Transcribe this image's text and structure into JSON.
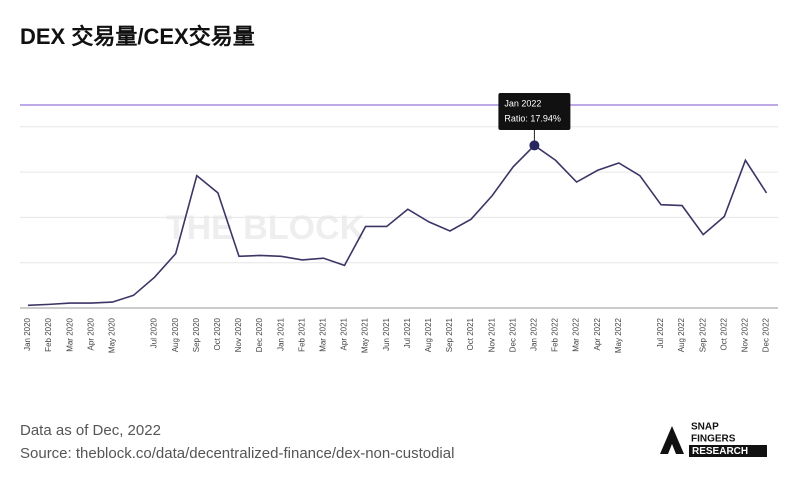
{
  "chart_data": {
    "type": "line",
    "title": "DEX 交易量/CEX交易量",
    "categories": [
      "Jan 2020",
      "Feb 2020",
      "Mar 2020",
      "Apr 2020",
      "May 2020",
      null,
      "Jul 2020",
      "Aug 2020",
      "Sep 2020",
      "Oct 2020",
      "Nov 2020",
      "Dec 2020",
      "Jan 2021",
      "Feb 2021",
      "Mar 2021",
      "Apr 2021",
      "May 2021",
      "Jun 2021",
      "Jul 2021",
      "Aug 2021",
      "Sep 2021",
      "Oct 2021",
      "Nov 2021",
      "Dec 2021",
      "Jan 2022",
      "Feb 2022",
      "Mar 2022",
      "Apr 2022",
      "May 2022",
      null,
      "Jul 2022",
      "Aug 2022",
      "Sep 2022",
      "Oct 2022",
      "Nov 2022",
      "Dec 2022"
    ],
    "series": [
      {
        "name": "Ratio",
        "color": "#3b3666",
        "values": [
          0.3,
          0.4,
          0.55,
          0.55,
          0.65,
          1.4,
          3.4,
          6.0,
          14.6,
          12.7,
          5.7,
          5.8,
          5.7,
          5.3,
          5.5,
          4.7,
          9.0,
          9.0,
          10.9,
          9.5,
          8.5,
          9.8,
          12.4,
          15.6,
          17.94,
          16.3,
          13.9,
          15.2,
          16.0,
          14.6,
          11.4,
          11.3,
          8.1,
          10.1,
          16.3,
          12.7
        ]
      }
    ],
    "ylim": [
      0,
      22.4
    ],
    "yticks": [
      0,
      5,
      10,
      15,
      20
    ],
    "grid": true,
    "tooltip": {
      "title": "Jan 2022",
      "label": "Ratio: 17.94%",
      "index": 24
    },
    "watermark": "THE BLOCK",
    "notes": [
      "Data as of Dec, 2022",
      "Source: theblock.co/data/decentralized-finance/dex-non-custodial"
    ],
    "logo": [
      "SNAP",
      "FINGERS",
      "RESEARCH"
    ]
  }
}
